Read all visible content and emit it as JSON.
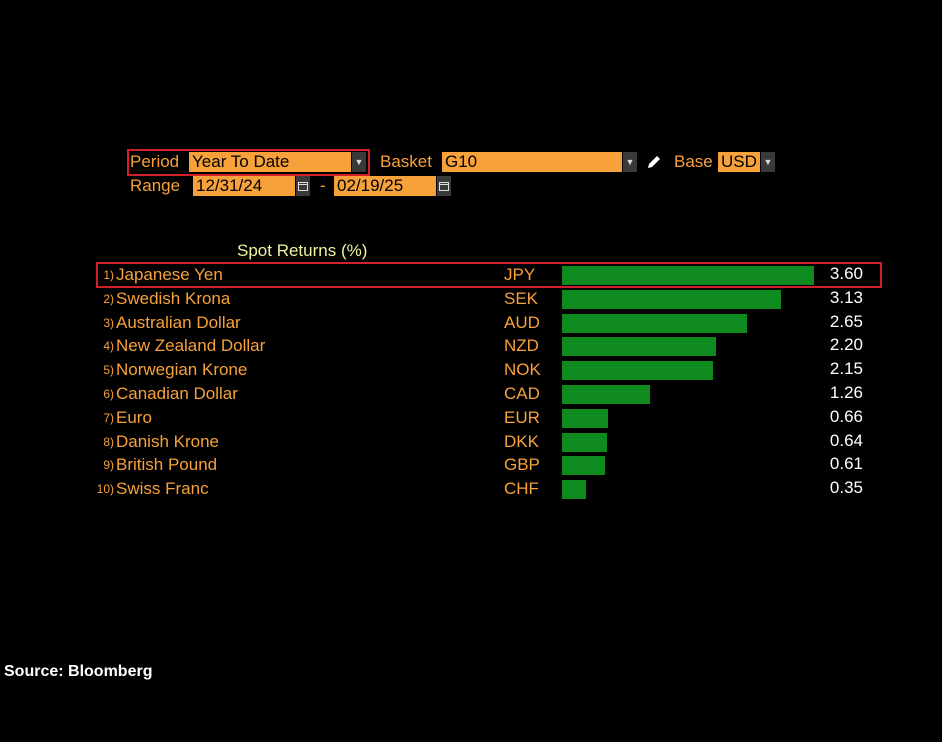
{
  "controls": {
    "period_label": "Period",
    "period_value": "Year To Date",
    "basket_label": "Basket",
    "basket_value": "G10",
    "base_label": "Base",
    "base_value": "USD",
    "range_label": "Range",
    "range_start": "12/31/24",
    "range_sep": "-",
    "range_end": "02/19/25"
  },
  "chart_title": "Spot Returns (%)",
  "source": "Source: Bloomberg",
  "colors": {
    "accent": "#f7a13a",
    "bar": "#0f8a1f",
    "highlight": "#d0202a"
  },
  "chart_data": {
    "type": "bar",
    "orientation": "horizontal",
    "title": "Spot Returns (%)",
    "xlim": [
      0,
      3.6
    ],
    "ranks": [
      "1)",
      "2)",
      "3)",
      "4)",
      "5)",
      "6)",
      "7)",
      "8)",
      "9)",
      "10)"
    ],
    "categories": [
      "Japanese Yen",
      "Swedish Krona",
      "Australian Dollar",
      "New Zealand Dollar",
      "Norwegian Krone",
      "Canadian Dollar",
      "Euro",
      "Danish Krone",
      "British Pound",
      "Swiss Franc"
    ],
    "codes": [
      "JPY",
      "SEK",
      "AUD",
      "NZD",
      "NOK",
      "CAD",
      "EUR",
      "DKK",
      "GBP",
      "CHF"
    ],
    "values": [
      3.6,
      3.13,
      2.65,
      2.2,
      2.15,
      1.26,
      0.66,
      0.64,
      0.61,
      0.35
    ],
    "labels": [
      "3.60",
      "3.13",
      "2.65",
      "2.20",
      "2.15",
      "1.26",
      "0.66",
      "0.64",
      "0.61",
      "0.35"
    ]
  }
}
